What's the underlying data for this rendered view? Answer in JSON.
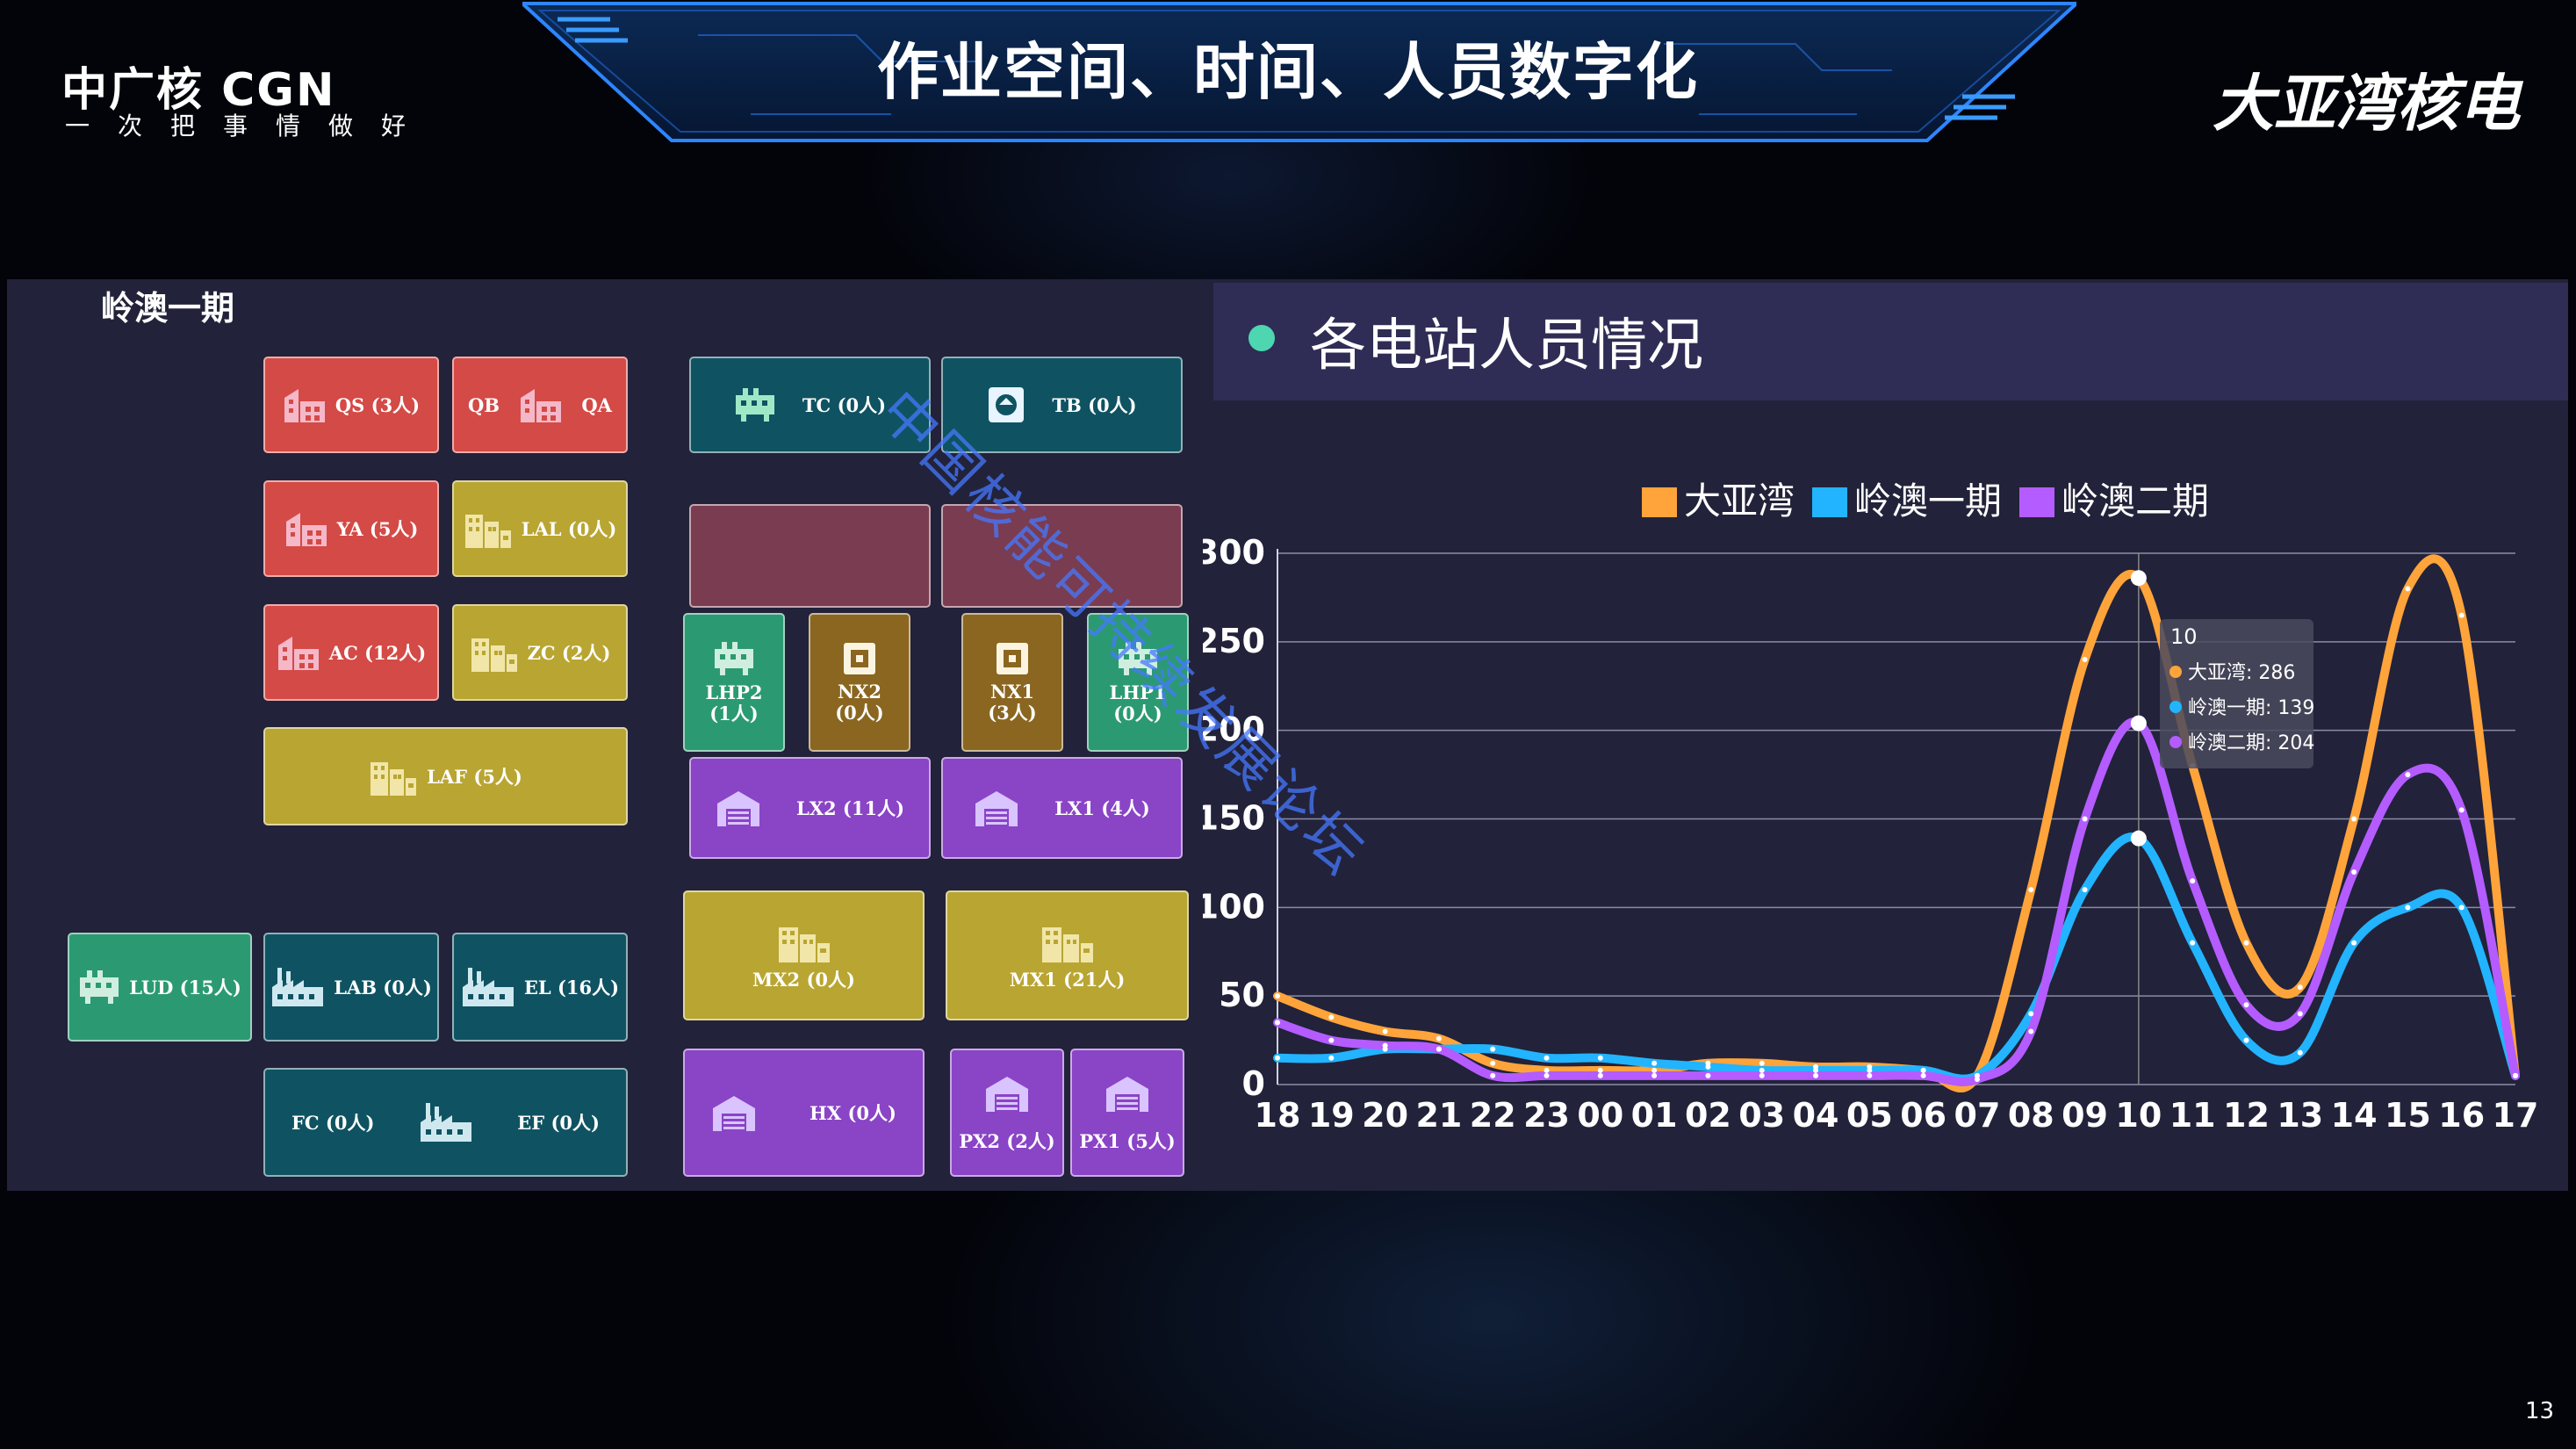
{
  "header": {
    "logo_brand": "中广核 CGN",
    "logo_slogan": "一次把事情做好",
    "title": "作业空间、时间、人员数字化",
    "logo_right": "大亚湾核电"
  },
  "map": {
    "title": "岭澳一期",
    "tiles": {
      "qs": "QS (3人)",
      "qb": "QB",
      "qa": "QA",
      "ya": "YA (5人)",
      "lal": "LAL (0人)",
      "ac": "AC (12人)",
      "zc": "ZC (2人)",
      "laf": "LAF (5人)",
      "lud": "LUD (15人)",
      "lab": "LAB (0人)",
      "el": "EL (16人)",
      "fc": "FC (0人)",
      "ef": "EF (0人)",
      "tc": "TC (0人)",
      "tb": "TB (0人)",
      "lhp2_name": "LHP2",
      "lhp2_count": "(1人)",
      "nx2_name": "NX2",
      "nx2_count": "(0人)",
      "nx1_name": "NX1",
      "nx1_count": "(3人)",
      "lhp1_name": "LHP1",
      "lhp1_count": "(0人)",
      "lx2": "LX2 (11人)",
      "lx1": "LX1 (4人)",
      "mx2": "MX2 (0人)",
      "mx1": "MX1 (21人)",
      "hx": "HX (0人)",
      "px2": "PX2 (2人)",
      "px1": "PX1 (5人)"
    }
  },
  "watermark": "中国核能可持续发展论坛",
  "chart_title": "各电站人员情况",
  "chart_data": {
    "type": "line",
    "x": [
      "18",
      "19",
      "20",
      "21",
      "22",
      "23",
      "00",
      "01",
      "02",
      "03",
      "04",
      "05",
      "06",
      "07",
      "08",
      "09",
      "10",
      "11",
      "12",
      "13",
      "14",
      "15",
      "16",
      "17"
    ],
    "ylim": [
      0,
      300
    ],
    "yticks": [
      "0",
      "50",
      "100",
      "150",
      "200",
      "250",
      "300"
    ],
    "series": [
      {
        "name": "大亚湾",
        "color": "#ffa43a",
        "values": [
          50,
          38,
          30,
          26,
          12,
          8,
          8,
          8,
          12,
          12,
          10,
          10,
          8,
          5,
          110,
          240,
          286,
          180,
          80,
          55,
          150,
          280,
          265,
          5
        ]
      },
      {
        "name": "岭澳一期",
        "color": "#22b4ff",
        "values": [
          15,
          15,
          20,
          20,
          20,
          15,
          15,
          12,
          10,
          8,
          8,
          8,
          8,
          5,
          40,
          110,
          139,
          80,
          25,
          18,
          80,
          100,
          100,
          5
        ]
      },
      {
        "name": "岭澳二期",
        "color": "#b45cff",
        "values": [
          35,
          25,
          22,
          20,
          5,
          5,
          5,
          5,
          5,
          5,
          5,
          5,
          5,
          3,
          30,
          150,
          204,
          115,
          45,
          40,
          120,
          175,
          155,
          5
        ]
      }
    ],
    "tooltip": {
      "title": "10",
      "rows": [
        "大亚湾: 286",
        "岭澳一期: 139",
        "岭澳二期: 204"
      ]
    },
    "grid": true,
    "legend_position": "top-center"
  },
  "slide_number": "13"
}
